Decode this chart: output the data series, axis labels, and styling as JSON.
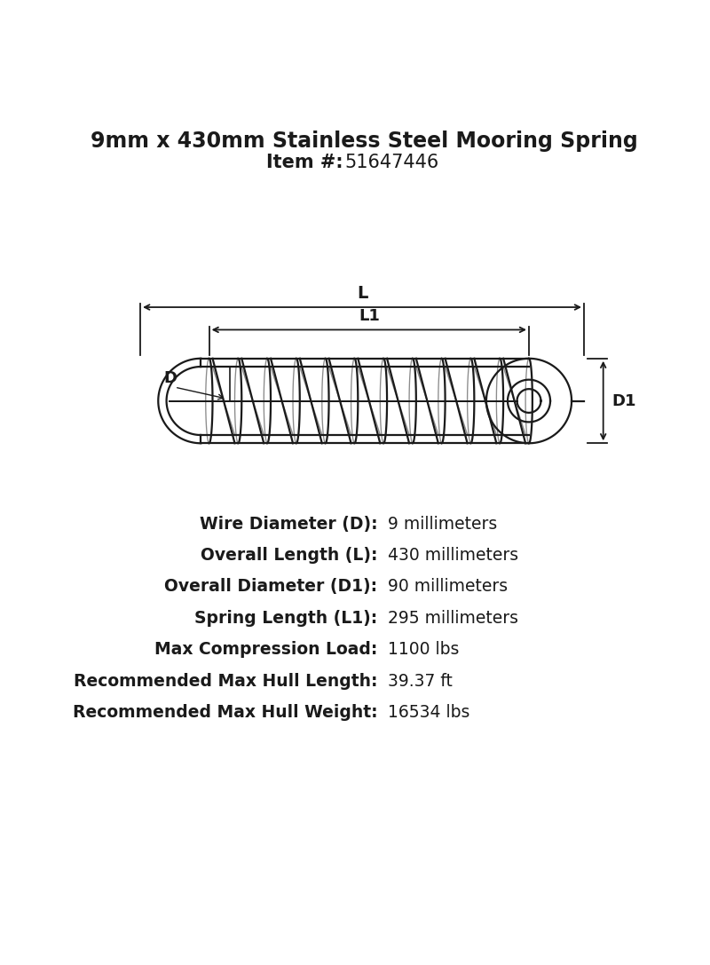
{
  "title_line1": "9mm x 430mm Stainless Steel Mooring Spring",
  "title_line2_bold": "Item #:",
  "title_line2_normal": "51647446",
  "bg_color": "#ffffff",
  "line_color": "#1a1a1a",
  "title_fontsize": 17,
  "subtitle_fontsize": 15,
  "spec_fontsize": 13.5,
  "specs": [
    {
      "label": "Wire Diameter (D):",
      "value": "9 millimeters"
    },
    {
      "label": "Overall Length (L):",
      "value": "430 millimeters"
    },
    {
      "label": "Overall Diameter (D1):",
      "value": "90 millimeters"
    },
    {
      "label": "Spring Length (L1):",
      "value": "295 millimeters"
    },
    {
      "label": "Max Compression Load:",
      "value": "1100 lbs"
    },
    {
      "label": "Recommended Max Hull Length:",
      "value": "39.37 ft"
    },
    {
      "label": "Recommended Max Hull Weight:",
      "value": "16534 lbs"
    }
  ],
  "n_coils": 11,
  "spring_lw": 1.6,
  "dim_lw": 1.3
}
